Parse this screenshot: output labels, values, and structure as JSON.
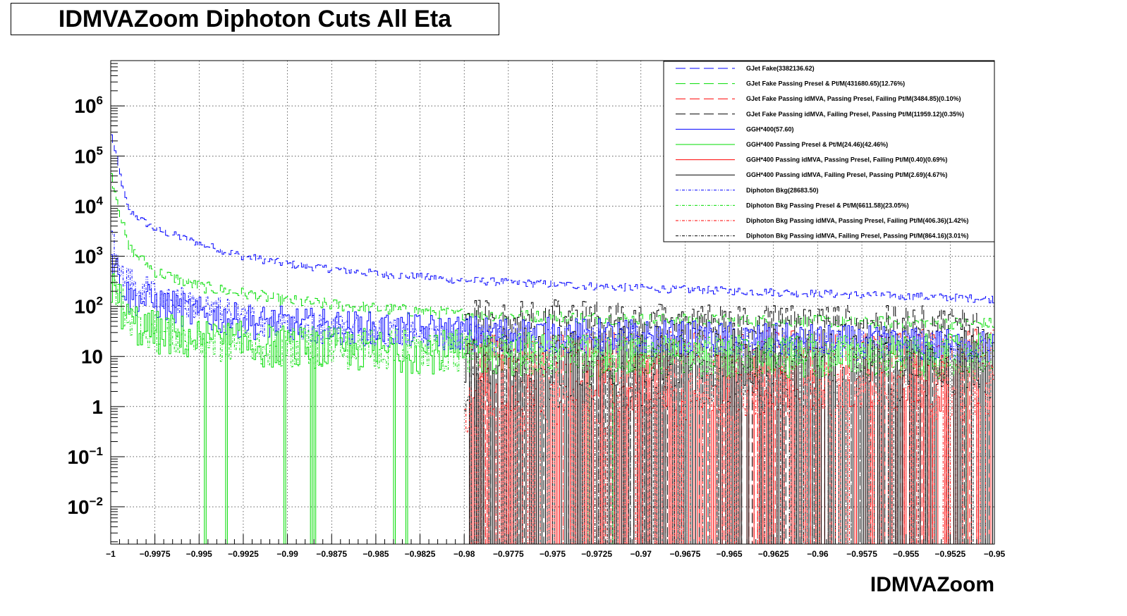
{
  "chart_data": {
    "type": "line",
    "title": "IDMVAZoom Diphoton Cuts All Eta",
    "xlabel": "IDMVAZoom",
    "ylabel": "",
    "xlim": [
      -1,
      -0.95
    ],
    "ylim": [
      0.0018,
      8000000
    ],
    "yscale": "log",
    "grid": true,
    "legend_position": "top-right",
    "x_tick_labels": [
      "−1",
      "−0.9975",
      "−0.995",
      "−0.9925",
      "−0.99",
      "−0.9875",
      "−0.985",
      "−0.9825",
      "−0.98",
      "−0.9775",
      "−0.975",
      "−0.9725",
      "−0.97",
      "−0.9675",
      "−0.965",
      "−0.9625",
      "−0.96",
      "−0.9575",
      "−0.955",
      "−0.9525",
      "−0.95"
    ],
    "x_tick_values": [
      -1,
      -0.9975,
      -0.995,
      -0.9925,
      -0.99,
      -0.9875,
      -0.985,
      -0.9825,
      -0.98,
      -0.9775,
      -0.975,
      -0.9725,
      -0.97,
      -0.9675,
      -0.965,
      -0.9625,
      -0.96,
      -0.9575,
      -0.955,
      -0.9525,
      -0.95
    ],
    "y_ticks": [
      {
        "value": 0.01,
        "base": "10",
        "exp": "−2"
      },
      {
        "value": 0.1,
        "base": "10",
        "exp": "−1"
      },
      {
        "value": 1,
        "base": "1",
        "exp": ""
      },
      {
        "value": 10,
        "base": "10",
        "exp": ""
      },
      {
        "value": 100,
        "base": "10",
        "exp": "2"
      },
      {
        "value": 1000,
        "base": "10",
        "exp": "3"
      },
      {
        "value": 10000,
        "base": "10",
        "exp": "4"
      },
      {
        "value": 100000,
        "base": "10",
        "exp": "5"
      },
      {
        "value": 1000000,
        "base": "10",
        "exp": "6"
      }
    ],
    "series": [
      {
        "name": "GJet Fake(3382136.62)",
        "color": "#0000ff",
        "dash": "long-dash",
        "anchors": [
          [
            -1.0,
            300000
          ],
          [
            -0.999,
            8000
          ],
          [
            -0.9975,
            3500
          ],
          [
            -0.995,
            1800
          ],
          [
            -0.9925,
            1000
          ],
          [
            -0.99,
            700
          ],
          [
            -0.985,
            450
          ],
          [
            -0.98,
            330
          ],
          [
            -0.97,
            230
          ],
          [
            -0.96,
            180
          ],
          [
            -0.95,
            140
          ]
        ],
        "noise": 0.08,
        "zero_from": null,
        "zero_prob": 0
      },
      {
        "name": "GJet Fake Passing Presel & Pt/M(431680.65)(12.76%)",
        "color": "#00dd00",
        "dash": "long-dash",
        "anchors": [
          [
            -1.0,
            50000
          ],
          [
            -0.999,
            1500
          ],
          [
            -0.9975,
            500
          ],
          [
            -0.995,
            250
          ],
          [
            -0.9925,
            180
          ],
          [
            -0.99,
            130
          ],
          [
            -0.985,
            90
          ],
          [
            -0.98,
            70
          ],
          [
            -0.97,
            55
          ],
          [
            -0.96,
            50
          ],
          [
            -0.95,
            45
          ]
        ],
        "noise": 0.12,
        "zero_from": null,
        "zero_prob": 0
      },
      {
        "name": "GJet Fake Passing idMVA, Passing Presel, Failing Pt/M(3484.85)(0.10%)",
        "color": "#ff0000",
        "dash": "long-dash",
        "anchors": [
          [
            -0.98,
            15
          ],
          [
            -0.97,
            16
          ],
          [
            -0.96,
            17
          ],
          [
            -0.95,
            18
          ]
        ],
        "noise": 0.3,
        "zero_from": -0.98,
        "zero_prob": 0.3
      },
      {
        "name": "GJet Fake Passing idMVA, Failing Presel, Passing Pt/M(11959.12)(0.35%)",
        "color": "#000000",
        "dash": "long-dash",
        "anchors": [
          [
            -0.98,
            80
          ],
          [
            -0.97,
            60
          ],
          [
            -0.96,
            55
          ],
          [
            -0.95,
            50
          ]
        ],
        "noise": 0.3,
        "zero_from": -0.98,
        "zero_prob": 0.3
      },
      {
        "name": "GGH*400(57.60)",
        "color": "#0000ff",
        "dash": "solid",
        "anchors": [
          [
            -1.0,
            1000
          ],
          [
            -0.999,
            150
          ],
          [
            -0.9975,
            120
          ],
          [
            -0.995,
            70
          ],
          [
            -0.9925,
            50
          ],
          [
            -0.99,
            45
          ],
          [
            -0.985,
            35
          ],
          [
            -0.98,
            30
          ],
          [
            -0.97,
            25
          ],
          [
            -0.96,
            20
          ],
          [
            -0.95,
            15
          ]
        ],
        "noise": 0.35,
        "zero_from": null,
        "zero_prob": 0
      },
      {
        "name": "GGH*400 Passing Presel & Pt/M(24.46)(42.46%)",
        "color": "#00dd00",
        "dash": "solid",
        "anchors": [
          [
            -1.0,
            300
          ],
          [
            -0.999,
            50
          ],
          [
            -0.9975,
            30
          ],
          [
            -0.995,
            22
          ],
          [
            -0.9925,
            18
          ],
          [
            -0.99,
            15
          ],
          [
            -0.98,
            12
          ],
          [
            -0.97,
            10
          ],
          [
            -0.96,
            10
          ],
          [
            -0.95,
            10
          ]
        ],
        "noise": 0.45,
        "zero_from": null,
        "zero_prob": 0.02
      },
      {
        "name": "GGH*400 Passing idMVA, Passing Presel, Failing Pt/M(0.40)(0.69%)",
        "color": "#ff0000",
        "dash": "solid",
        "anchors": [
          [
            -0.98,
            3
          ],
          [
            -0.97,
            3
          ],
          [
            -0.96,
            3
          ],
          [
            -0.95,
            3
          ]
        ],
        "noise": 0.6,
        "zero_from": -0.98,
        "zero_prob": 0.45
      },
      {
        "name": "GGH*400 Passing idMVA, Failing Presel, Passing Pt/M(2.69)(4.67%)",
        "color": "#000000",
        "dash": "solid",
        "anchors": [
          [
            -0.98,
            10
          ],
          [
            -0.97,
            10
          ],
          [
            -0.96,
            10
          ],
          [
            -0.95,
            10
          ]
        ],
        "noise": 0.6,
        "zero_from": -0.98,
        "zero_prob": 0.4
      },
      {
        "name": "Diphoton Bkg(28683.50)",
        "color": "#0000ff",
        "dash": "dash-dot",
        "anchors": [
          [
            -1.0,
            2000
          ],
          [
            -0.999,
            300
          ],
          [
            -0.9975,
            180
          ],
          [
            -0.995,
            100
          ],
          [
            -0.9925,
            60
          ],
          [
            -0.99,
            40
          ],
          [
            -0.985,
            30
          ],
          [
            -0.98,
            25
          ],
          [
            -0.97,
            20
          ],
          [
            -0.96,
            18
          ],
          [
            -0.95,
            15
          ]
        ],
        "noise": 0.3,
        "zero_from": null,
        "zero_prob": 0
      },
      {
        "name": "Diphoton Bkg Passing Presel & Pt/M(6611.58)(23.05%)",
        "color": "#00dd00",
        "dash": "dash-dot",
        "anchors": [
          [
            -1.0,
            400
          ],
          [
            -0.999,
            60
          ],
          [
            -0.9975,
            30
          ],
          [
            -0.995,
            20
          ],
          [
            -0.99,
            15
          ],
          [
            -0.98,
            12
          ],
          [
            -0.97,
            10
          ],
          [
            -0.96,
            10
          ],
          [
            -0.95,
            8
          ]
        ],
        "noise": 0.4,
        "zero_from": null,
        "zero_prob": 0
      },
      {
        "name": "Diphoton Bkg Passing idMVA, Passing Presel, Failing Pt/M(406.36)(1.42%)",
        "color": "#ff0000",
        "dash": "dash-dot",
        "anchors": [
          [
            -0.98,
            1
          ],
          [
            -0.97,
            1.5
          ],
          [
            -0.96,
            2
          ],
          [
            -0.95,
            2
          ]
        ],
        "noise": 0.6,
        "zero_from": -0.98,
        "zero_prob": 0.3
      },
      {
        "name": "Diphoton Bkg Passing idMVA, Failing Presel, Passing Pt/M(864.16)(3.01%)",
        "color": "#000000",
        "dash": "dash-dot",
        "anchors": [
          [
            -0.98,
            3
          ],
          [
            -0.97,
            4
          ],
          [
            -0.96,
            5
          ],
          [
            -0.95,
            5
          ]
        ],
        "noise": 0.6,
        "zero_from": -0.98,
        "zero_prob": 0.3
      }
    ]
  }
}
